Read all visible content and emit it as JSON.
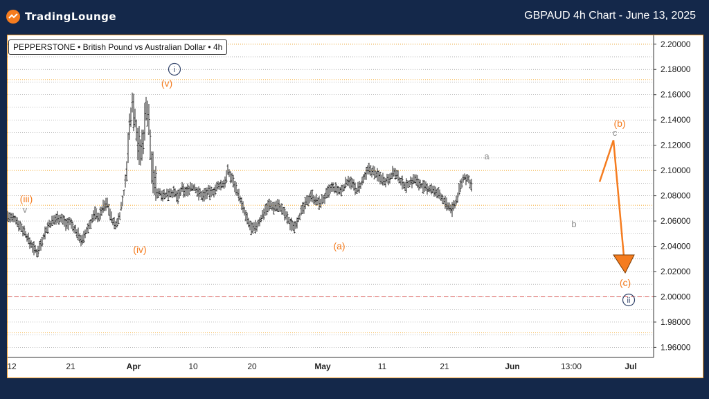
{
  "header": {
    "logo_text": "TradingLounge",
    "title": "GBPAUD 4h Chart - June 13, 2025"
  },
  "symbol_label": "PEPPERSTONE • British Pound vs Australian Dollar • 4h",
  "colors": {
    "background": "#14284a",
    "orange": "#f57c1f",
    "gray_label": "#8a8a8a",
    "navy_label": "#2c3e66",
    "red_line": "#d9534f",
    "candles": "#222222",
    "grid": "#9a9a9a"
  },
  "chart_data": {
    "type": "line",
    "title": "",
    "xlabel": "",
    "ylabel": "",
    "ylim": [
      1.952,
      2.207
    ],
    "y_ticks": [
      "2.20000",
      "2.18000",
      "2.16000",
      "2.14000",
      "2.12000",
      "2.10000",
      "2.08000",
      "2.06000",
      "2.04000",
      "2.02000",
      "2.00000",
      "1.98000",
      "1.96000"
    ],
    "x_ticks": [
      "12",
      "21",
      "Apr",
      "10",
      "20",
      "May",
      "11",
      "21",
      "Jun",
      "13:00",
      "Jul"
    ],
    "price_path": [
      [
        0,
        2.064
      ],
      [
        5,
        2.062
      ],
      [
        12,
        2.061
      ],
      [
        18,
        2.056
      ],
      [
        24,
        2.052
      ],
      [
        30,
        2.045
      ],
      [
        36,
        2.04
      ],
      [
        42,
        2.035
      ],
      [
        48,
        2.042
      ],
      [
        54,
        2.051
      ],
      [
        60,
        2.057
      ],
      [
        66,
        2.06
      ],
      [
        72,
        2.063
      ],
      [
        78,
        2.062
      ],
      [
        84,
        2.058
      ],
      [
        90,
        2.059
      ],
      [
        96,
        2.054
      ],
      [
        102,
        2.049
      ],
      [
        108,
        2.044
      ],
      [
        114,
        2.052
      ],
      [
        120,
        2.059
      ],
      [
        126,
        2.066
      ],
      [
        132,
        2.063
      ],
      [
        138,
        2.071
      ],
      [
        144,
        2.074
      ],
      [
        150,
        2.062
      ],
      [
        156,
        2.056
      ],
      [
        162,
        2.065
      ],
      [
        168,
        2.082
      ],
      [
        172,
        2.101
      ],
      [
        176,
        2.132
      ],
      [
        180,
        2.155
      ],
      [
        184,
        2.142
      ],
      [
        188,
        2.124
      ],
      [
        192,
        2.113
      ],
      [
        196,
        2.125
      ],
      [
        200,
        2.151
      ],
      [
        204,
        2.138
      ],
      [
        208,
        2.104
      ],
      [
        212,
        2.091
      ],
      [
        216,
        2.083
      ],
      [
        222,
        2.082
      ],
      [
        228,
        2.08
      ],
      [
        234,
        2.083
      ],
      [
        240,
        2.082
      ],
      [
        246,
        2.079
      ],
      [
        252,
        2.085
      ],
      [
        258,
        2.083
      ],
      [
        264,
        2.087
      ],
      [
        270,
        2.086
      ],
      [
        276,
        2.082
      ],
      [
        282,
        2.08
      ],
      [
        288,
        2.083
      ],
      [
        294,
        2.082
      ],
      [
        300,
        2.085
      ],
      [
        306,
        2.088
      ],
      [
        312,
        2.089
      ],
      [
        318,
        2.099
      ],
      [
        324,
        2.094
      ],
      [
        330,
        2.086
      ],
      [
        336,
        2.077
      ],
      [
        342,
        2.067
      ],
      [
        348,
        2.058
      ],
      [
        354,
        2.053
      ],
      [
        360,
        2.056
      ],
      [
        366,
        2.062
      ],
      [
        372,
        2.069
      ],
      [
        378,
        2.073
      ],
      [
        384,
        2.071
      ],
      [
        390,
        2.073
      ],
      [
        396,
        2.069
      ],
      [
        402,
        2.064
      ],
      [
        408,
        2.058
      ],
      [
        414,
        2.056
      ],
      [
        420,
        2.062
      ],
      [
        426,
        2.069
      ],
      [
        432,
        2.075
      ],
      [
        438,
        2.081
      ],
      [
        444,
        2.077
      ],
      [
        450,
        2.074
      ],
      [
        456,
        2.077
      ],
      [
        462,
        2.082
      ],
      [
        468,
        2.086
      ],
      [
        474,
        2.085
      ],
      [
        480,
        2.083
      ],
      [
        486,
        2.087
      ],
      [
        492,
        2.093
      ],
      [
        498,
        2.089
      ],
      [
        504,
        2.084
      ],
      [
        510,
        2.088
      ],
      [
        516,
        2.095
      ],
      [
        522,
        2.101
      ],
      [
        528,
        2.099
      ],
      [
        534,
        2.096
      ],
      [
        540,
        2.094
      ],
      [
        546,
        2.092
      ],
      [
        552,
        2.095
      ],
      [
        558,
        2.099
      ],
      [
        564,
        2.094
      ],
      [
        570,
        2.09
      ],
      [
        576,
        2.088
      ],
      [
        582,
        2.091
      ],
      [
        588,
        2.093
      ],
      [
        594,
        2.09
      ],
      [
        600,
        2.087
      ],
      [
        606,
        2.085
      ],
      [
        612,
        2.086
      ],
      [
        618,
        2.082
      ],
      [
        624,
        2.081
      ],
      [
        630,
        2.076
      ],
      [
        636,
        2.071
      ],
      [
        642,
        2.069
      ],
      [
        648,
        2.076
      ],
      [
        654,
        2.088
      ],
      [
        660,
        2.095
      ],
      [
        666,
        2.092
      ],
      [
        670,
        2.089
      ]
    ],
    "horizontal_lines": [
      {
        "value": 2.2,
        "style": "orange-dotted"
      },
      {
        "value": 2.172,
        "style": "orange-dotted"
      },
      {
        "value": 2.1,
        "style": "orange-dotted"
      },
      {
        "value": 2.0725,
        "style": "orange-dotted"
      },
      {
        "value": 2.0,
        "style": "red-dashed"
      },
      {
        "value": 1.9715,
        "style": "orange-dotted"
      }
    ],
    "projection": [
      {
        "from": [
          674,
          2.091
        ],
        "to": [
          700,
          2.124
        ],
        "label": "(b)"
      },
      {
        "from": [
          700,
          2.124
        ],
        "to": [
          718,
          2.02
        ],
        "label": "(c)",
        "arrow": true
      }
    ],
    "wave_labels": [
      {
        "text": "(iii)",
        "x": 20,
        "y": 2.085,
        "color": "orange"
      },
      {
        "text": "v",
        "x": 20,
        "y": 2.074,
        "color": "gray"
      },
      {
        "text": "(iv)",
        "x": 190,
        "y": 2.04,
        "color": "orange"
      },
      {
        "text": "(v)",
        "x": 230,
        "y": 2.169,
        "color": "orange"
      },
      {
        "text": "i",
        "x": 242,
        "y": 2.184,
        "color": "navy-circle"
      },
      {
        "text": "(a)",
        "x": 480,
        "y": 2.042,
        "color": "orange"
      },
      {
        "text": "a",
        "x": 693,
        "y": 2.113,
        "color": "gray"
      },
      {
        "text": "b",
        "x": 820,
        "y": 2.064,
        "color": "gray"
      },
      {
        "text": "(b)",
        "x": 895,
        "y": 2.138,
        "color": "orange"
      },
      {
        "text": "c",
        "x": 888,
        "y": 2.13,
        "color": "gray"
      },
      {
        "text": "(c)",
        "x": 902,
        "y": 2.012,
        "color": "orange"
      },
      {
        "text": "ii",
        "x": 908,
        "y": 1.996,
        "color": "navy-circle"
      }
    ]
  }
}
